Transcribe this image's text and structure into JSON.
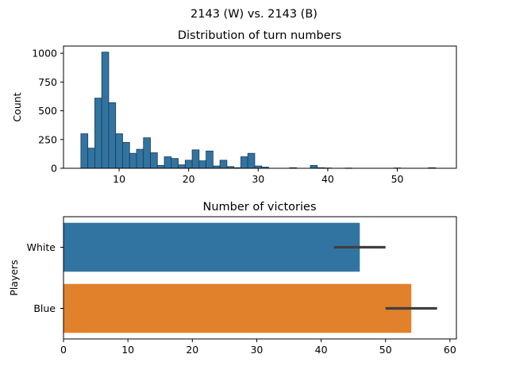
{
  "figure": {
    "suptitle": "2143 (W) vs. 2143 (B)"
  },
  "chart_data": [
    {
      "type": "bar",
      "subtype": "histogram",
      "title": "Distribution of turn numbers",
      "xlabel": "",
      "ylabel": "Count",
      "xlim": [
        2,
        58.5
      ],
      "ylim": [
        0,
        1063
      ],
      "xticks": [
        10,
        20,
        30,
        40,
        50
      ],
      "yticks": [
        0,
        250,
        500,
        750,
        1000
      ],
      "bin_width": 1,
      "bar_color": "#3274a1",
      "edge_color": "#1b3a52",
      "bins": [
        {
          "x": 5,
          "count": 300
        },
        {
          "x": 6,
          "count": 175
        },
        {
          "x": 7,
          "count": 610
        },
        {
          "x": 8,
          "count": 1010
        },
        {
          "x": 9,
          "count": 570
        },
        {
          "x": 10,
          "count": 300
        },
        {
          "x": 11,
          "count": 225
        },
        {
          "x": 12,
          "count": 130
        },
        {
          "x": 13,
          "count": 165
        },
        {
          "x": 14,
          "count": 265
        },
        {
          "x": 15,
          "count": 135
        },
        {
          "x": 16,
          "count": 25
        },
        {
          "x": 17,
          "count": 100
        },
        {
          "x": 18,
          "count": 85
        },
        {
          "x": 19,
          "count": 30
        },
        {
          "x": 20,
          "count": 70
        },
        {
          "x": 21,
          "count": 160
        },
        {
          "x": 22,
          "count": 65
        },
        {
          "x": 23,
          "count": 150
        },
        {
          "x": 24,
          "count": 20
        },
        {
          "x": 25,
          "count": 70
        },
        {
          "x": 26,
          "count": 15
        },
        {
          "x": 27,
          "count": 5
        },
        {
          "x": 28,
          "count": 100
        },
        {
          "x": 29,
          "count": 130
        },
        {
          "x": 30,
          "count": 20
        },
        {
          "x": 31,
          "count": 10
        },
        {
          "x": 35,
          "count": 5
        },
        {
          "x": 38,
          "count": 25
        },
        {
          "x": 39,
          "count": 5
        },
        {
          "x": 40,
          "count": 3
        },
        {
          "x": 43,
          "count": 2
        },
        {
          "x": 50,
          "count": 3
        },
        {
          "x": 55,
          "count": 5
        }
      ]
    },
    {
      "type": "bar",
      "orientation": "horizontal",
      "title": "Number of victories",
      "xlabel": "",
      "ylabel": "Players",
      "xlim": [
        0,
        61
      ],
      "xticks": [
        0,
        10,
        20,
        30,
        40,
        50,
        60
      ],
      "categories": [
        "White",
        "Blue"
      ],
      "values": [
        46,
        54
      ],
      "error_bars": [
        [
          42,
          50
        ],
        [
          50,
          58
        ]
      ],
      "colors": [
        "#3274a1",
        "#e1812c"
      ],
      "errorbar_color": "#3f3f3f"
    }
  ]
}
